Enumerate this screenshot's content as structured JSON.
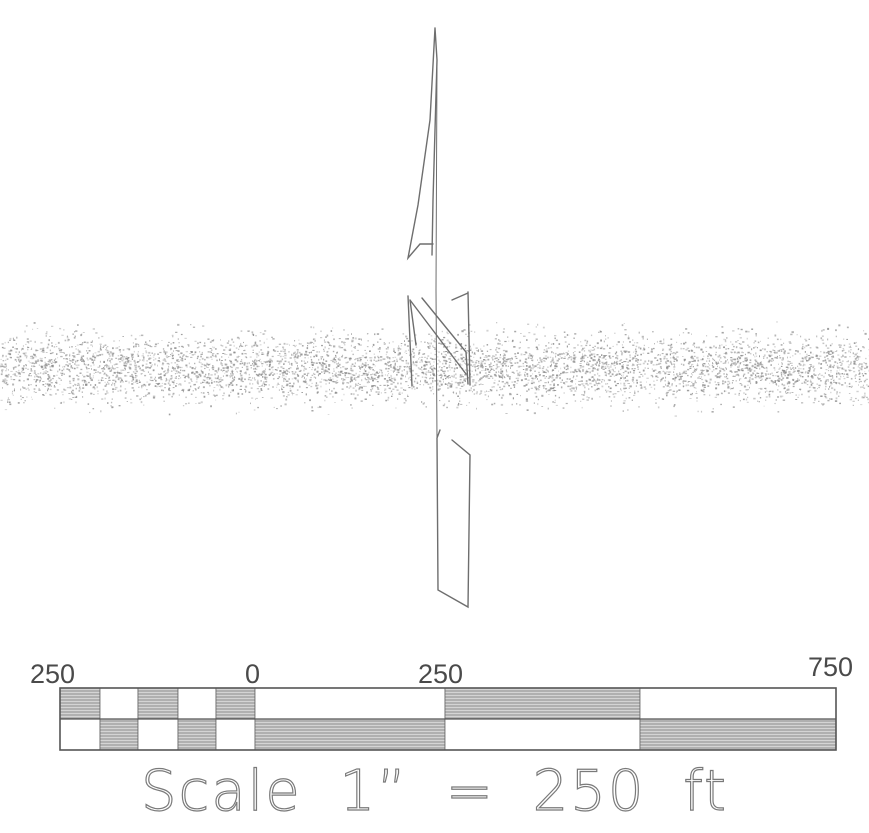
{
  "scale_bar": {
    "tick_labels": [
      "250",
      "0",
      "250",
      "750"
    ],
    "caption": "Scale 1” = 250 ft",
    "units": "ft"
  },
  "colors": {
    "line": "#6e6e6e",
    "stipple": "#8a8a8a",
    "fill_dark": "#9a9a9a"
  }
}
